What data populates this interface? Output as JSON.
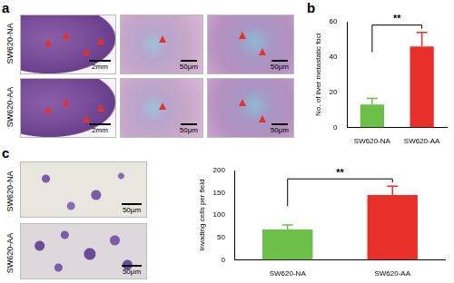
{
  "panel_labels": [
    "a",
    "b",
    "c"
  ],
  "figure_a": {
    "row_labels": [
      "SW620-NA",
      "SW620-AA"
    ],
    "scale_bars": [
      "2mm",
      "50µm",
      "50µm"
    ]
  },
  "figure_c": {
    "row_labels": [
      "SW620-NA",
      "SW620-AA"
    ],
    "scale_bar": "50µm"
  },
  "chart_data": [
    {
      "type": "bar",
      "y_label": "No. of liver metastatic foci",
      "categories": [
        "SW620-NA",
        "SW620-AA"
      ],
      "values": [
        13,
        46
      ],
      "errors": [
        3.5,
        8
      ],
      "colors": [
        "#6cc04a",
        "#e8302a"
      ],
      "ylim": [
        0,
        60
      ],
      "yticks": [
        0,
        20,
        40,
        60
      ],
      "grid": false,
      "annotation": "**"
    },
    {
      "type": "bar",
      "y_label": "Invading cells per field",
      "categories": [
        "SW620-NA",
        "SW620-AA"
      ],
      "values": [
        68,
        145
      ],
      "errors": [
        10,
        20
      ],
      "colors": [
        "#6cc04a",
        "#e8302a"
      ],
      "ylim": [
        0,
        200
      ],
      "yticks": [
        0,
        50,
        100,
        150,
        200
      ],
      "grid": false,
      "annotation": "**"
    }
  ]
}
